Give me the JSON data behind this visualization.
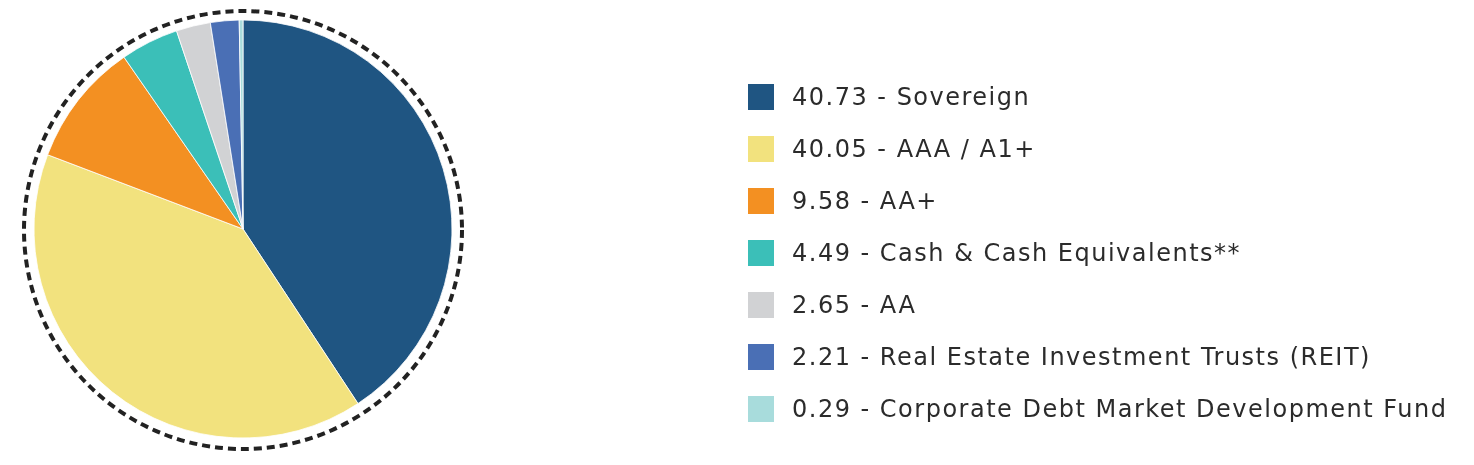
{
  "chart_data": {
    "type": "pie",
    "categories": [
      "40.73 - Sovereign",
      "40.05 - AAA / A1+",
      "9.58 - AA+",
      "4.49 - Cash & Cash Equivalents**",
      "2.65 - AA",
      "2.21 - Real Estate Investment Trusts (REIT)",
      "0.29 - Corporate Debt Market Development Fund"
    ],
    "values": [
      40.73,
      40.05,
      9.58,
      4.49,
      2.65,
      2.21,
      0.29
    ],
    "colors": [
      "#1f5582",
      "#f2e27e",
      "#f39022",
      "#3bbfb8",
      "#d1d2d4",
      "#4a6fb5",
      "#a8dcdc"
    ],
    "legend": "right"
  }
}
